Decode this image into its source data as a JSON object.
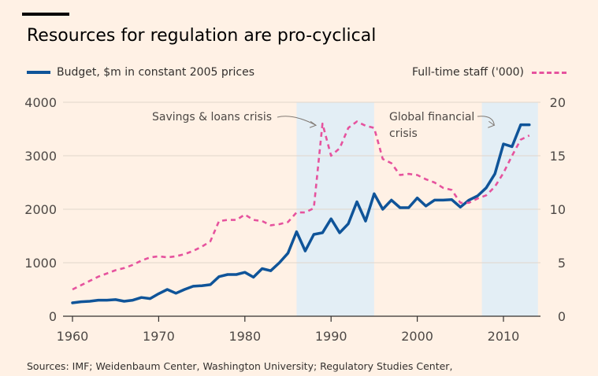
{
  "title": "Resources for regulation are pro-cyclical",
  "source": "Sources: IMF; Weidenbaum Center, Washington University; Regulatory Studies Center,",
  "colors": {
    "background": "#fff1e5",
    "budget": "#0f5499",
    "staff": "#e6539e",
    "shade": "#e3eef5",
    "grid": "#e2d6cb"
  },
  "chart_data": {
    "type": "line",
    "legend": {
      "budget": "Budget, $m in constant 2005 prices",
      "staff": "Full-time staff ('000)"
    },
    "x_ticks": [
      "1960",
      "1970",
      "1980",
      "1990",
      "2000",
      "2010"
    ],
    "x_tick_values": [
      1960,
      1970,
      1980,
      1990,
      2000,
      2010
    ],
    "y_left_ticks": [
      "4000",
      "3000",
      "2000",
      "1000",
      "0"
    ],
    "y_left_tick_values": [
      4000,
      3000,
      2000,
      1000,
      0
    ],
    "y_right_ticks": [
      "20",
      "15",
      "10",
      "5",
      "0"
    ],
    "y_right_tick_values": [
      20,
      15,
      10,
      5,
      0
    ],
    "xlim": [
      1960,
      2014
    ],
    "ylim_left": [
      0,
      4000
    ],
    "ylim_right": [
      0,
      20
    ],
    "shaded_periods": [
      [
        1986,
        1995
      ],
      [
        2007.5,
        2014
      ]
    ],
    "annotations": [
      {
        "lines": [
          "Savings & loans crisis"
        ],
        "target_year": 1988.8,
        "target_value": 17.7
      },
      {
        "lines": [
          "Global financial",
          "crisis"
        ],
        "target_year": 2009.3,
        "target_value": 17.7
      }
    ],
    "series": [
      {
        "name": "Budget, $m in constant 2005 prices",
        "axis": "left",
        "x": [
          1960,
          1961,
          1962,
          1963,
          1964,
          1965,
          1966,
          1967,
          1968,
          1969,
          1970,
          1971,
          1972,
          1973,
          1974,
          1975,
          1976,
          1977,
          1978,
          1979,
          1980,
          1981,
          1982,
          1983,
          1984,
          1985,
          1986,
          1987,
          1988,
          1989,
          1990,
          1991,
          1992,
          1993,
          1994,
          1995,
          1996,
          1997,
          1998,
          1999,
          2000,
          2001,
          2002,
          2003,
          2004,
          2005,
          2006,
          2007,
          2008,
          2009,
          2010,
          2011,
          2012,
          2013
        ],
        "values": [
          250,
          270,
          280,
          300,
          300,
          310,
          280,
          300,
          350,
          330,
          420,
          500,
          430,
          500,
          560,
          570,
          590,
          740,
          780,
          780,
          820,
          730,
          890,
          850,
          1000,
          1180,
          1580,
          1220,
          1530,
          1560,
          1820,
          1560,
          1730,
          2140,
          1780,
          2290,
          2000,
          2170,
          2030,
          2030,
          2210,
          2060,
          2170,
          2170,
          2180,
          2040,
          2170,
          2250,
          2400,
          2660,
          3220,
          3170,
          3580,
          3580
        ]
      },
      {
        "name": "Full-time staff ('000)",
        "axis": "right",
        "x": [
          1960,
          1961,
          1962,
          1963,
          1964,
          1965,
          1966,
          1967,
          1968,
          1969,
          1970,
          1971,
          1972,
          1973,
          1974,
          1975,
          1976,
          1977,
          1978,
          1979,
          1980,
          1981,
          1982,
          1983,
          1984,
          1985,
          1986,
          1987,
          1988,
          1989,
          1990,
          1991,
          1992,
          1993,
          1994,
          1995,
          1996,
          1997,
          1998,
          1999,
          2000,
          2001,
          2002,
          2003,
          2004,
          2005,
          2006,
          2007,
          2008,
          2009,
          2010,
          2011,
          2012,
          2013
        ],
        "values": [
          2.5,
          2.9,
          3.3,
          3.7,
          4.0,
          4.3,
          4.5,
          4.8,
          5.2,
          5.5,
          5.6,
          5.5,
          5.6,
          5.8,
          6.1,
          6.5,
          7.0,
          8.9,
          9.0,
          9.0,
          9.5,
          9.0,
          8.9,
          8.5,
          8.6,
          8.8,
          9.7,
          9.7,
          10.1,
          18.0,
          15.0,
          15.7,
          17.6,
          18.2,
          17.8,
          17.6,
          14.7,
          14.3,
          13.2,
          13.3,
          13.2,
          12.8,
          12.5,
          12.0,
          11.8,
          10.6,
          10.6,
          11.0,
          11.3,
          12.1,
          13.4,
          15.0,
          16.5,
          16.9
        ]
      }
    ]
  }
}
